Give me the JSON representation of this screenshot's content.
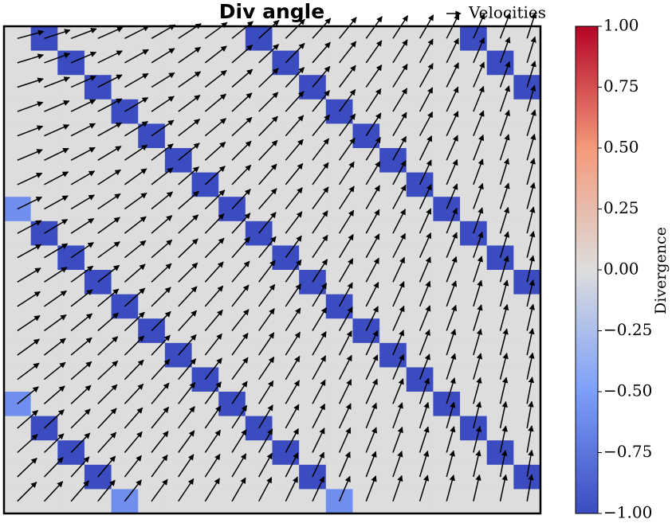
{
  "chart_data": {
    "type": "heatmap-quiver",
    "title": "Div angle",
    "title_color": "#2ca02c",
    "colorbar_label": "Divergence",
    "colormap": "coolwarm",
    "quiver_key": "Velocities",
    "zlim": [
      -1,
      1
    ],
    "zticks": [
      {
        "value": -1,
        "label": "−1.00"
      },
      {
        "value": -0.75,
        "label": "−0.75"
      },
      {
        "value": -0.5,
        "label": "−0.50"
      },
      {
        "value": -0.25,
        "label": "−0.25"
      },
      {
        "value": 0,
        "label": "0.00"
      },
      {
        "value": 0.25,
        "label": "0.25"
      },
      {
        "value": 0.5,
        "label": "0.50"
      },
      {
        "value": 0.75,
        "label": "0.75"
      },
      {
        "value": 1,
        "label": "1.00"
      }
    ],
    "values": [
      [
        0,
        -1,
        0,
        0,
        0,
        0,
        0,
        0,
        0,
        -1,
        0,
        0,
        0,
        0,
        0,
        0,
        0,
        -1,
        0,
        0
      ],
      [
        0,
        0,
        -1,
        0,
        0,
        0,
        0,
        0,
        0,
        0,
        -1,
        0,
        0,
        0,
        0,
        0,
        0,
        0,
        -1,
        0
      ],
      [
        0,
        0,
        0,
        -1,
        0,
        0,
        0,
        0,
        0,
        0,
        0,
        -1,
        0,
        0,
        0,
        0,
        0,
        0,
        0,
        -1
      ],
      [
        0,
        0,
        0,
        0,
        -1,
        0,
        0,
        0,
        0,
        0,
        0,
        0,
        -1,
        0,
        0,
        0,
        0,
        0,
        0,
        0
      ],
      [
        0,
        0,
        0,
        0,
        0,
        -1,
        0,
        0,
        0,
        0,
        0,
        0,
        0,
        -1,
        0,
        0,
        0,
        0,
        0,
        0
      ],
      [
        0,
        0,
        0,
        0,
        0,
        0,
        -1,
        0,
        0,
        0,
        0,
        0,
        0,
        0,
        -1,
        0,
        0,
        0,
        0,
        0
      ],
      [
        0,
        0,
        0,
        0,
        0,
        0,
        0,
        -1,
        0,
        0,
        0,
        0,
        0,
        0,
        0,
        -1,
        0,
        0,
        0,
        0
      ],
      [
        -0.6,
        0,
        0,
        0,
        0,
        0,
        0,
        0,
        -1,
        0,
        0,
        0,
        0,
        0,
        0,
        0,
        -1,
        0,
        0,
        0
      ],
      [
        0,
        -1,
        0,
        0,
        0,
        0,
        0,
        0,
        0,
        -1,
        0,
        0,
        0,
        0,
        0,
        0,
        0,
        -1,
        0,
        0
      ],
      [
        0,
        0,
        -1,
        0,
        0,
        0,
        0,
        0,
        0,
        0,
        -1,
        0,
        0,
        0,
        0,
        0,
        0,
        0,
        -1,
        0
      ],
      [
        0,
        0,
        0,
        -1,
        0,
        0,
        0,
        0,
        0,
        0,
        0,
        -1,
        0,
        0,
        0,
        0,
        0,
        0,
        0,
        -1
      ],
      [
        0,
        0,
        0,
        0,
        -1,
        0,
        0,
        0,
        0,
        0,
        0,
        0,
        -1,
        0,
        0,
        0,
        0,
        0,
        0,
        0
      ],
      [
        0,
        0,
        0,
        0,
        0,
        -1,
        0,
        0,
        0,
        0,
        0,
        0,
        0,
        -1,
        0,
        0,
        0,
        0,
        0,
        0
      ],
      [
        0,
        0,
        0,
        0,
        0,
        0,
        -1,
        0,
        0,
        0,
        0,
        0,
        0,
        0,
        -1,
        0,
        0,
        0,
        0,
        0
      ],
      [
        0,
        0,
        0,
        0,
        0,
        0,
        0,
        -1,
        0,
        0,
        0,
        0,
        0,
        0,
        0,
        -1,
        0,
        0,
        0,
        0
      ],
      [
        -0.6,
        0,
        0,
        0,
        0,
        0,
        0,
        0,
        -1,
        0,
        0,
        0,
        0,
        0,
        0,
        0,
        -1,
        0,
        0,
        0
      ],
      [
        0,
        -1,
        0,
        0,
        0,
        0,
        0,
        0,
        0,
        -1,
        0,
        0,
        0,
        0,
        0,
        0,
        0,
        -1,
        0,
        0
      ],
      [
        0,
        0,
        -1,
        0,
        0,
        0,
        0,
        0,
        0,
        0,
        -1,
        0,
        0,
        0,
        0,
        0,
        0,
        0,
        -1,
        0
      ],
      [
        0,
        0,
        0,
        -1,
        0,
        0,
        0,
        0,
        0,
        0,
        0,
        -1,
        0,
        0,
        0,
        0,
        0,
        0,
        0,
        -1
      ],
      [
        0,
        0,
        0,
        0,
        -0.6,
        0,
        0,
        0,
        0,
        0,
        0,
        0,
        -0.6,
        0,
        0,
        0,
        0,
        0,
        0,
        0
      ]
    ],
    "angles": [
      [
        15,
        18,
        21,
        24,
        27,
        30,
        33,
        36,
        39,
        42,
        45,
        48,
        51,
        54,
        57,
        60,
        63,
        66,
        69,
        72
      ],
      [
        17,
        20,
        23,
        26,
        29,
        32,
        35,
        38,
        41,
        43,
        46,
        49,
        52,
        55,
        58,
        61,
        64,
        67,
        70,
        73
      ],
      [
        18,
        21,
        24,
        27,
        30,
        32,
        35,
        38,
        41,
        44,
        47,
        50,
        53,
        55,
        58,
        61,
        64,
        67,
        70,
        73
      ],
      [
        20,
        23,
        26,
        28,
        31,
        34,
        37,
        40,
        43,
        45,
        48,
        51,
        54,
        57,
        59,
        62,
        65,
        68,
        71,
        74
      ],
      [
        21,
        24,
        27,
        29,
        32,
        35,
        38,
        40,
        43,
        46,
        49,
        51,
        54,
        57,
        60,
        62,
        65,
        68,
        71,
        73
      ],
      [
        23,
        26,
        28,
        31,
        34,
        37,
        39,
        42,
        45,
        47,
        50,
        53,
        55,
        58,
        61,
        64,
        66,
        69,
        72,
        74
      ],
      [
        25,
        28,
        30,
        33,
        36,
        38,
        41,
        43,
        46,
        49,
        51,
        54,
        57,
        59,
        62,
        65,
        67,
        70,
        73,
        75
      ],
      [
        26,
        29,
        31,
        34,
        36,
        39,
        41,
        44,
        47,
        49,
        52,
        54,
        57,
        60,
        62,
        65,
        67,
        70,
        72,
        75
      ],
      [
        28,
        31,
        33,
        36,
        38,
        41,
        43,
        46,
        48,
        51,
        53,
        56,
        58,
        61,
        63,
        66,
        68,
        71,
        73,
        76
      ],
      [
        29,
        31,
        34,
        36,
        39,
        41,
        44,
        46,
        49,
        51,
        54,
        56,
        59,
        61,
        63,
        66,
        68,
        71,
        73,
        76
      ],
      [
        31,
        33,
        36,
        38,
        41,
        43,
        45,
        48,
        50,
        53,
        55,
        57,
        60,
        62,
        65,
        67,
        69,
        72,
        74,
        77
      ],
      [
        33,
        35,
        38,
        40,
        42,
        45,
        47,
        49,
        52,
        54,
        56,
        59,
        61,
        63,
        66,
        68,
        70,
        73,
        75,
        77
      ],
      [
        34,
        36,
        39,
        41,
        43,
        45,
        48,
        50,
        52,
        55,
        57,
        59,
        61,
        64,
        66,
        68,
        70,
        73,
        75,
        77
      ],
      [
        36,
        38,
        40,
        43,
        45,
        47,
        49,
        52,
        54,
        56,
        58,
        60,
        63,
        65,
        67,
        69,
        72,
        74,
        76,
        78
      ],
      [
        37,
        39,
        41,
        43,
        46,
        48,
        50,
        52,
        54,
        56,
        59,
        61,
        63,
        65,
        67,
        69,
        72,
        74,
        76,
        78
      ],
      [
        39,
        41,
        43,
        45,
        47,
        50,
        52,
        54,
        56,
        58,
        60,
        62,
        64,
        66,
        68,
        71,
        73,
        75,
        77,
        79
      ],
      [
        41,
        43,
        45,
        47,
        49,
        51,
        53,
        55,
        57,
        59,
        61,
        63,
        65,
        68,
        70,
        72,
        74,
        76,
        78,
        80
      ],
      [
        42,
        44,
        46,
        48,
        50,
        52,
        54,
        56,
        58,
        60,
        62,
        64,
        66,
        68,
        70,
        72,
        74,
        76,
        78,
        80
      ],
      [
        44,
        46,
        48,
        50,
        52,
        54,
        56,
        57,
        59,
        61,
        63,
        65,
        67,
        69,
        71,
        73,
        75,
        77,
        79,
        80
      ],
      [
        45,
        47,
        49,
        51,
        52,
        54,
        56,
        58,
        60,
        62,
        64,
        65,
        67,
        69,
        71,
        73,
        75,
        77,
        78,
        80
      ]
    ]
  }
}
